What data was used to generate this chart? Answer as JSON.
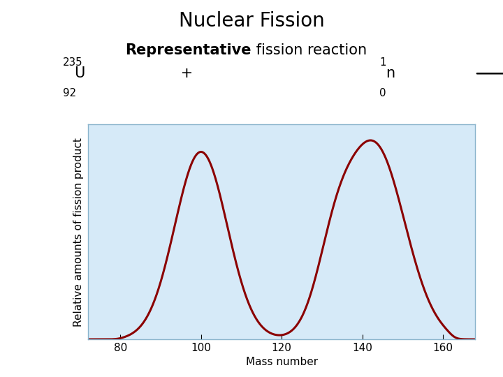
{
  "title": "Nuclear Fission",
  "xlabel": "Mass number",
  "ylabel": "Relative amounts of fission product",
  "xticks": [
    80,
    100,
    120,
    140,
    160
  ],
  "xlim": [
    72,
    168
  ],
  "ylim": [
    0,
    1.08
  ],
  "plot_bg_color": "#d6eaf8",
  "curve_color": "#8b0000",
  "curve_linewidth": 2.2,
  "title_fontsize": 20,
  "subtitle_fontsize": 15,
  "eq_fontsize": 15,
  "axis_fontsize": 11,
  "tick_fontsize": 11,
  "bg_color": "#ffffff"
}
